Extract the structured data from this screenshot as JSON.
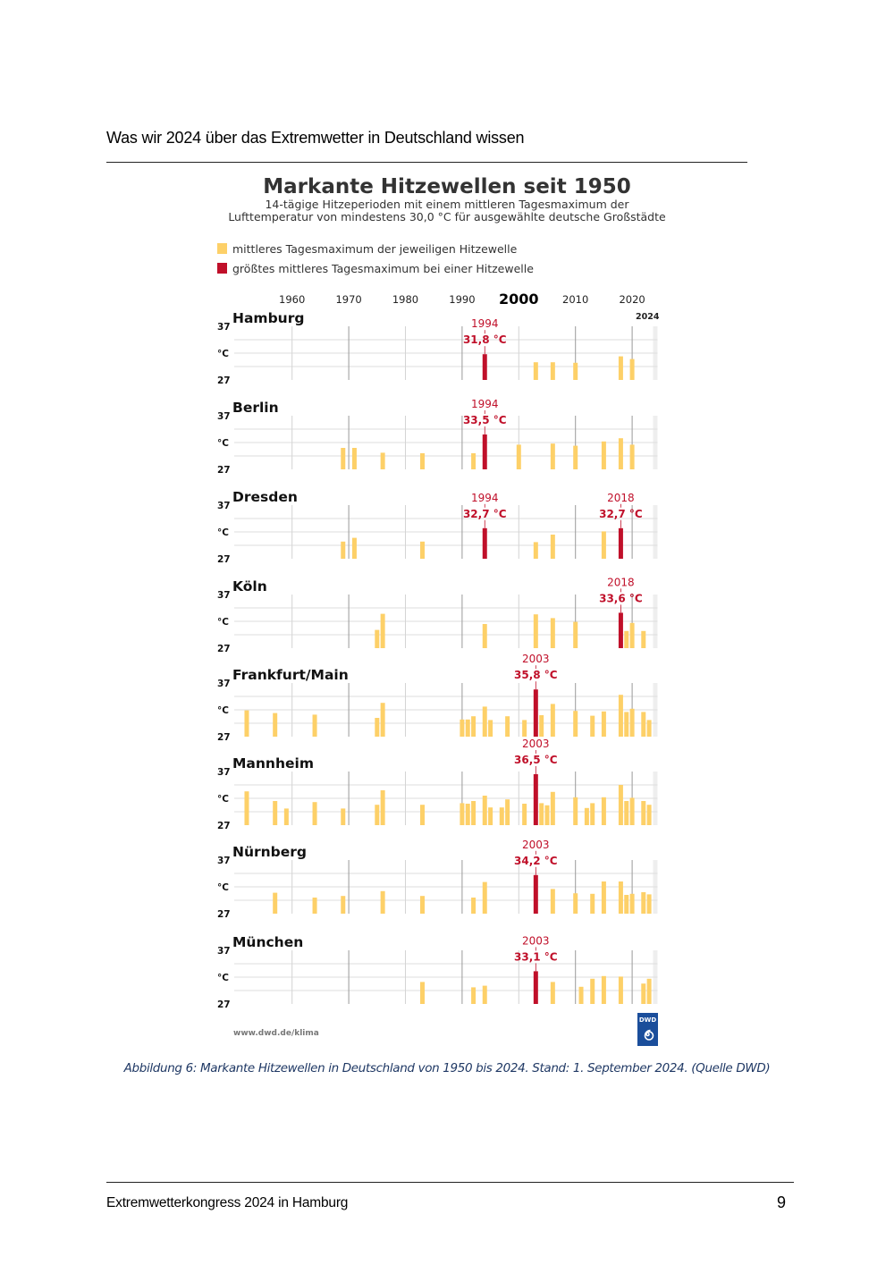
{
  "document": {
    "header": "Was wir 2024 über das Extremwetter in Deutschland wissen",
    "footer": "Extremwetterkongress 2024 in Hamburg",
    "page_number": "9",
    "caption": "Abbildung 6:  Markante Hitzewellen in Deutschland von 1950 bis 2024. Stand: 1. September 2024. (Quelle DWD)"
  },
  "chart_data": {
    "type": "bar",
    "title": "Markante Hitzewellen seit 1950",
    "subtitle_lines": [
      "14-tägige Hitzeperioden mit einem mittleren Tagesmaximum der",
      "Lufttemperatur von mindestens 30,0 °C für ausgewählte deutsche Großstädte"
    ],
    "legend": [
      {
        "label": "mittleres Tagesmaximum der jeweiligen Hitzewelle",
        "color": "#fdd068"
      },
      {
        "label": "größtes mittleres Tagesmaximum bei einer Hitzewelle",
        "color": "#c0102a"
      }
    ],
    "legend_position": "top-left",
    "x_ticks": [
      "1960",
      "1970",
      "1980",
      "1990",
      "2000",
      "2010",
      "2020"
    ],
    "x_tick_values": [
      1960,
      1970,
      1980,
      1990,
      2000,
      2010,
      2020
    ],
    "x_emphasized_tick": "2000",
    "xlim": [
      1950,
      2024
    ],
    "end_year_label": "2024",
    "ylabel": "°C",
    "y_tick_labels": [
      "37",
      "27"
    ],
    "ylim": [
      27,
      37
    ],
    "source_url": "www.dwd.de/klima",
    "logo_text": "DWD",
    "colors": {
      "normal": "#fdd068",
      "max": "#c0102a",
      "grid": "#888888"
    },
    "series": [
      {
        "name": "Hamburg",
        "max": {
          "year": 1994,
          "year_label": "1994",
          "value_label": "31,8 °C"
        },
        "points": [
          [
            1994,
            31.8
          ],
          [
            2003,
            30.3
          ],
          [
            2006,
            30.3
          ],
          [
            2010,
            30.2
          ],
          [
            2018,
            31.4
          ],
          [
            2020,
            30.9
          ]
        ]
      },
      {
        "name": "Berlin",
        "max": {
          "year": 1994,
          "year_label": "1994",
          "value_label": "33,5 °C"
        },
        "points": [
          [
            1969,
            31.0
          ],
          [
            1971,
            31.0
          ],
          [
            1976,
            30.1
          ],
          [
            1983,
            30.0
          ],
          [
            1992,
            30.0
          ],
          [
            1994,
            33.5
          ],
          [
            2000,
            31.6
          ],
          [
            2006,
            31.8
          ],
          [
            2010,
            31.4
          ],
          [
            2015,
            32.2
          ],
          [
            2018,
            32.8
          ],
          [
            2020,
            31.6
          ]
        ]
      },
      {
        "name": "Dresden",
        "max": {
          "year": 1994,
          "year_label": "1994",
          "value_label": "32,7 °C"
        },
        "max2": {
          "year": 2018,
          "year_label": "2018",
          "value_label": "32,7 °C"
        },
        "points": [
          [
            1969,
            30.2
          ],
          [
            1971,
            30.9
          ],
          [
            1983,
            30.2
          ],
          [
            1994,
            32.7
          ],
          [
            2003,
            30.1
          ],
          [
            2006,
            31.5
          ],
          [
            2015,
            32.1
          ],
          [
            2018,
            32.7
          ]
        ]
      },
      {
        "name": "Köln",
        "max": {
          "year": 2018,
          "year_label": "2018",
          "value_label": "33,6 °C"
        },
        "points": [
          [
            1975,
            30.4
          ],
          [
            1976,
            33.4
          ],
          [
            1994,
            31.5
          ],
          [
            2003,
            33.3
          ],
          [
            2006,
            32.6
          ],
          [
            2010,
            31.9
          ],
          [
            2018,
            33.6
          ],
          [
            2019,
            30.2
          ],
          [
            2020,
            31.7
          ],
          [
            2022,
            30.2
          ]
        ]
      },
      {
        "name": "Frankfurt/Main",
        "max": {
          "year": 2003,
          "year_label": "2003",
          "value_label": "35,8 °C"
        },
        "points": [
          [
            1952,
            31.9
          ],
          [
            1957,
            31.4
          ],
          [
            1964,
            31.1
          ],
          [
            1975,
            30.5
          ],
          [
            1976,
            33.3
          ],
          [
            1990,
            30.2
          ],
          [
            1991,
            30.2
          ],
          [
            1992,
            30.8
          ],
          [
            1994,
            32.6
          ],
          [
            1995,
            30.1
          ],
          [
            1998,
            30.8
          ],
          [
            2001,
            30.1
          ],
          [
            2003,
            35.8
          ],
          [
            2004,
            31.0
          ],
          [
            2006,
            33.1
          ],
          [
            2010,
            31.8
          ],
          [
            2013,
            30.9
          ],
          [
            2015,
            31.7
          ],
          [
            2018,
            34.8
          ],
          [
            2019,
            31.6
          ],
          [
            2020,
            32.2
          ],
          [
            2022,
            31.6
          ],
          [
            2023,
            30.1
          ]
        ]
      },
      {
        "name": "Mannheim",
        "max": {
          "year": 2003,
          "year_label": "2003",
          "value_label": "36,5 °C"
        },
        "points": [
          [
            1952,
            33.3
          ],
          [
            1957,
            31.5
          ],
          [
            1959,
            30.1
          ],
          [
            1964,
            31.3
          ],
          [
            1969,
            30.1
          ],
          [
            1975,
            30.8
          ],
          [
            1976,
            33.5
          ],
          [
            1983,
            30.8
          ],
          [
            1990,
            31.1
          ],
          [
            1991,
            31.0
          ],
          [
            1992,
            31.5
          ],
          [
            1994,
            32.5
          ],
          [
            1995,
            30.3
          ],
          [
            1997,
            30.3
          ],
          [
            1998,
            31.8
          ],
          [
            2001,
            31.0
          ],
          [
            2003,
            36.5
          ],
          [
            2004,
            31.1
          ],
          [
            2005,
            30.7
          ],
          [
            2006,
            33.2
          ],
          [
            2010,
            32.2
          ],
          [
            2012,
            30.2
          ],
          [
            2013,
            31.1
          ],
          [
            2015,
            32.2
          ],
          [
            2018,
            34.5
          ],
          [
            2019,
            31.5
          ],
          [
            2020,
            32.1
          ],
          [
            2022,
            31.5
          ],
          [
            2023,
            30.8
          ]
        ]
      },
      {
        "name": "Nürnberg",
        "max": {
          "year": 2003,
          "year_label": "2003",
          "value_label": "34,2 °C"
        },
        "points": [
          [
            1957,
            30.9
          ],
          [
            1964,
            30.0
          ],
          [
            1969,
            30.3
          ],
          [
            1976,
            31.2
          ],
          [
            1983,
            30.3
          ],
          [
            1992,
            30.0
          ],
          [
            1994,
            32.9
          ],
          [
            2003,
            34.2
          ],
          [
            2006,
            31.6
          ],
          [
            2010,
            30.8
          ],
          [
            2013,
            30.7
          ],
          [
            2015,
            33.0
          ],
          [
            2018,
            33.0
          ],
          [
            2019,
            30.5
          ],
          [
            2020,
            30.7
          ],
          [
            2022,
            31.0
          ],
          [
            2023,
            30.6
          ]
        ]
      },
      {
        "name": "München",
        "max": {
          "year": 2003,
          "year_label": "2003",
          "value_label": "33,1 °C"
        },
        "points": [
          [
            1983,
            31.1
          ],
          [
            1992,
            30.1
          ],
          [
            1994,
            30.4
          ],
          [
            2003,
            33.1
          ],
          [
            2006,
            31.1
          ],
          [
            2011,
            30.2
          ],
          [
            2013,
            31.7
          ],
          [
            2015,
            32.2
          ],
          [
            2018,
            32.1
          ],
          [
            2022,
            30.8
          ],
          [
            2023,
            31.7
          ]
        ]
      }
    ]
  }
}
